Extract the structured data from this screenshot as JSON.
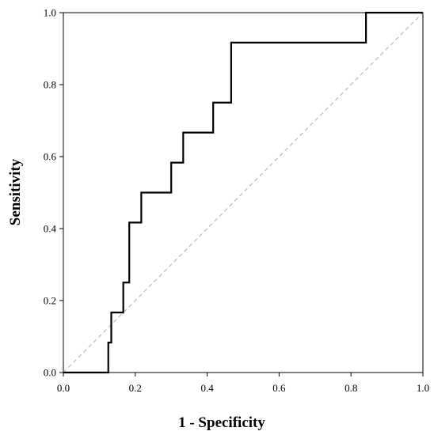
{
  "chart_data": {
    "type": "line",
    "title": "",
    "xlabel": "1 - Specificity",
    "ylabel": "Sensitivity",
    "xlim": [
      0.0,
      1.0
    ],
    "ylim": [
      0.0,
      1.0
    ],
    "xticks": [
      "0.0",
      "0.2",
      "0.4",
      "0.6",
      "0.8",
      "1.0"
    ],
    "yticks": [
      "0.0",
      "0.2",
      "0.4",
      "0.6",
      "0.8",
      "1.0"
    ],
    "grid": false,
    "series": [
      {
        "style": "step",
        "color": "#000000",
        "x": [
          0.0,
          0.125,
          0.125,
          0.1333,
          0.1333,
          0.1667,
          0.1667,
          0.1833,
          0.1833,
          0.2167,
          0.2167,
          0.3,
          0.3,
          0.3333,
          0.3333,
          0.4167,
          0.4167,
          0.4667,
          0.4667,
          0.8417,
          0.8417,
          1.0
        ],
        "y": [
          0.0,
          0.0,
          0.0833,
          0.0833,
          0.1667,
          0.1667,
          0.25,
          0.25,
          0.4167,
          0.4167,
          0.5,
          0.5,
          0.5833,
          0.5833,
          0.6667,
          0.6667,
          0.75,
          0.75,
          0.9167,
          0.9167,
          1.0,
          1.0
        ]
      }
    ],
    "reference_line": {
      "style": "dashed",
      "color": "#b8b8b8",
      "x": [
        0.0,
        1.0
      ],
      "y": [
        0.0,
        1.0
      ]
    }
  }
}
